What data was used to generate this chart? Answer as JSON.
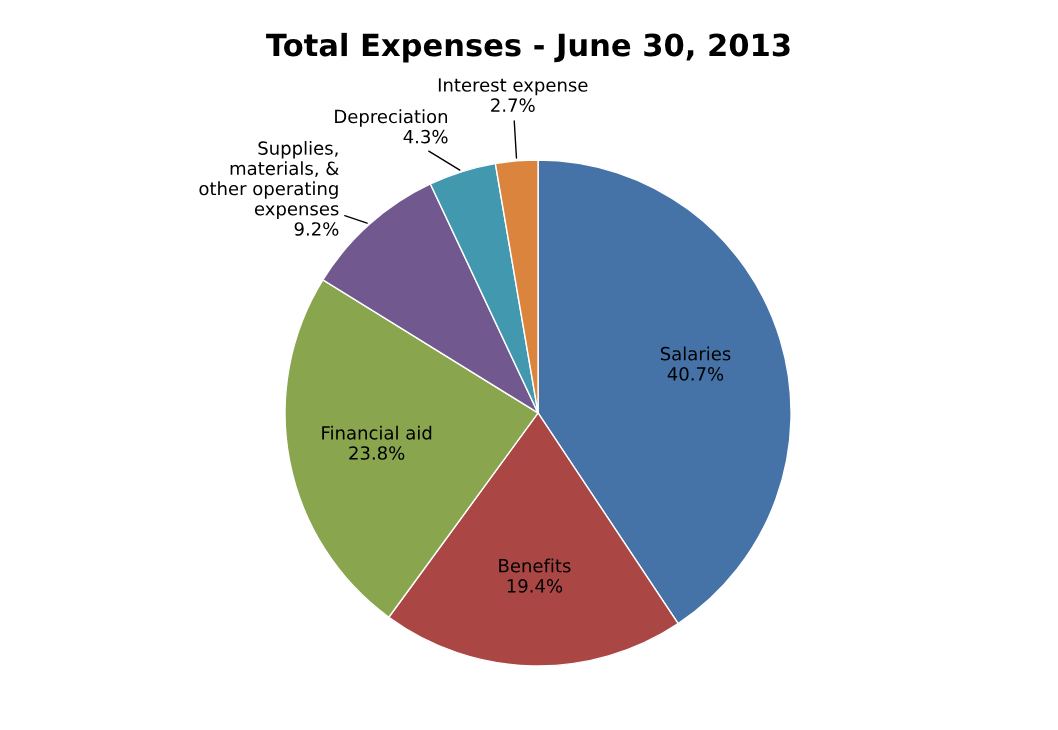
{
  "chart_data": {
    "type": "pie",
    "title": "Total Expenses - June 30, 2013",
    "categories": [
      "Salaries",
      "Benefits",
      "Financial aid",
      "Supplies,\nmaterials, &\nother operating\nexpenses",
      "Depreciation",
      "Interest expense"
    ],
    "values": [
      40.7,
      19.4,
      23.8,
      9.2,
      4.3,
      2.7
    ],
    "value_labels": [
      "40.7%",
      "19.4%",
      "23.8%",
      "9.2%",
      "4.3%",
      "2.7%"
    ],
    "colors": [
      "#4572a7",
      "#aa4643",
      "#89a54e",
      "#71588f",
      "#4198af",
      "#db843d"
    ]
  }
}
